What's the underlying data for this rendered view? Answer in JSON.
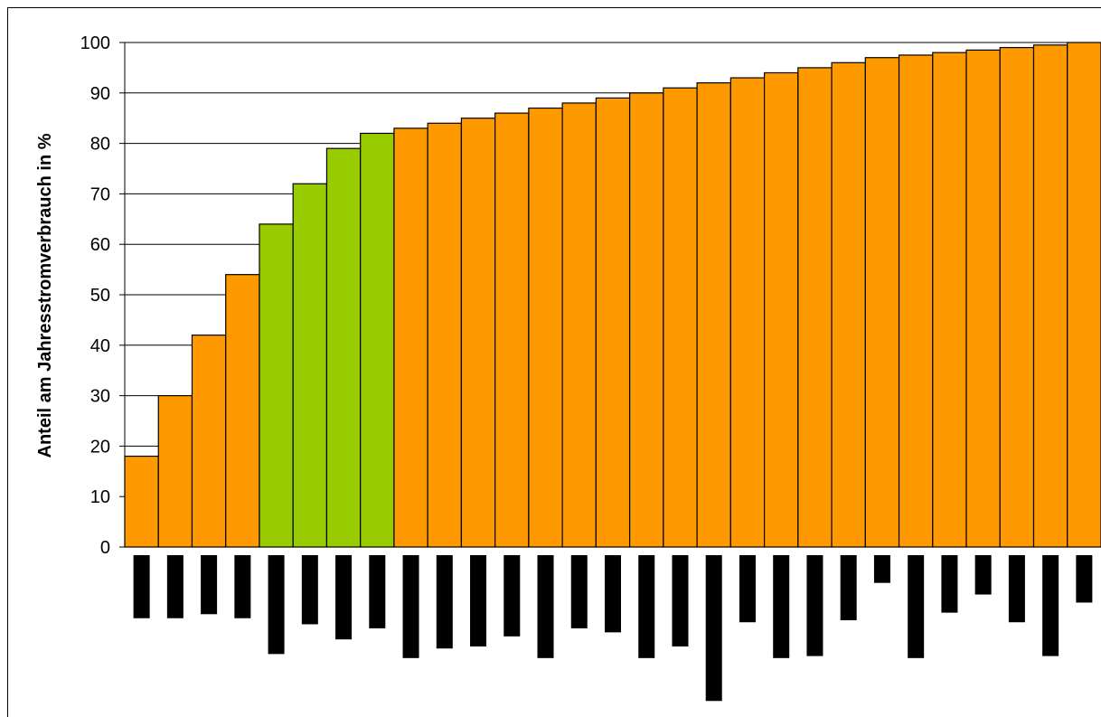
{
  "chart_data": {
    "type": "bar",
    "title": "",
    "xlabel": "",
    "ylabel": "Anteil am Jahresstromverbrauch in %",
    "ylim": [
      0,
      100
    ],
    "yticks": [
      "0",
      "10",
      "20",
      "30",
      "40",
      "50",
      "60",
      "70",
      "80",
      "90",
      "100"
    ],
    "grid": true,
    "legend": "none",
    "colors": {
      "default": "#FF9900",
      "highlight": "#99CC00",
      "label_block": "#000000"
    },
    "highlighted_indices": [
      4,
      5,
      6,
      7
    ],
    "values": [
      18,
      30,
      42,
      54,
      64,
      72,
      79,
      82,
      83,
      84,
      85,
      86,
      87,
      88,
      89,
      90,
      91,
      92,
      93,
      94,
      95,
      96,
      97,
      97.5,
      98,
      98.5,
      99,
      99.5,
      100
    ],
    "category_label_lengths_obscured": [
      12.5,
      12.5,
      11.7,
      12.5,
      19.6,
      13.7,
      16.7,
      14.5,
      20.4,
      18.5,
      18.1,
      16.1,
      20.4,
      14.5,
      15.3,
      20.4,
      18.1,
      28.9,
      13.3,
      20.4,
      20.0,
      12.9,
      5.5,
      20.4,
      11.4,
      7.8,
      13.3,
      20.0,
      9.4
    ]
  }
}
